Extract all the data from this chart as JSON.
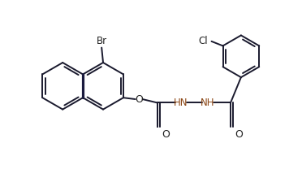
{
  "bg_color": "#ffffff",
  "line_color": "#1a1a2e",
  "figsize": [
    3.72,
    2.19
  ],
  "dpi": 100,
  "xlim": [
    0,
    10
  ],
  "ylim": [
    0,
    5.9
  ]
}
